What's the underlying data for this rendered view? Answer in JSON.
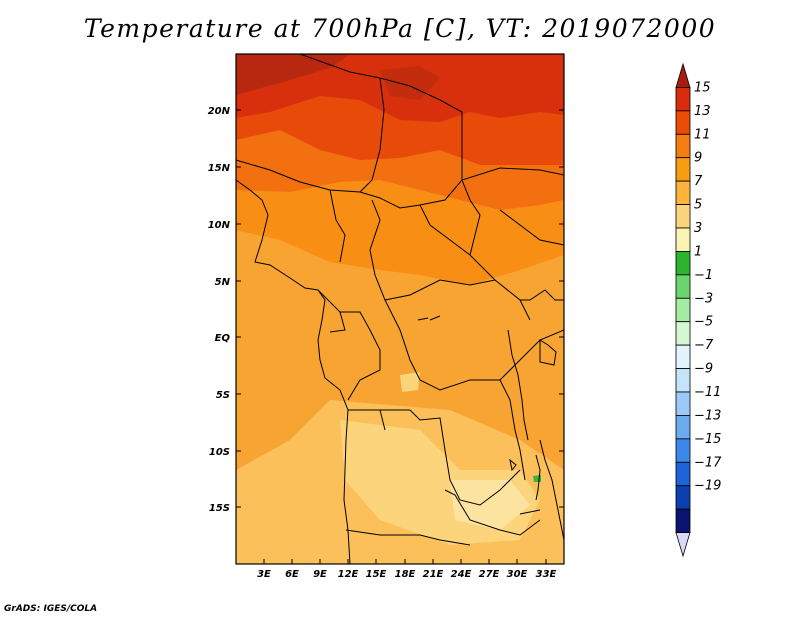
{
  "title": "Temperature at 700hPa [C], VT: 2019072000",
  "credit": "GrADS: IGES/COLA",
  "map": {
    "lat_labels": [
      "20N",
      "15N",
      "10N",
      "5N",
      "EQ",
      "5S",
      "10S",
      "15S"
    ],
    "lon_labels": [
      "3E",
      "6E",
      "9E",
      "12E",
      "15E",
      "18E",
      "21E",
      "24E",
      "27E",
      "30E",
      "33E"
    ]
  },
  "colorbar": {
    "labels": [
      "15",
      "13",
      "11",
      "9",
      "7",
      "5",
      "3",
      "1",
      "−1",
      "−3",
      "−5",
      "−7",
      "−9",
      "−11",
      "−13",
      "−15",
      "−17",
      "−19"
    ],
    "colors": [
      "#a81c0c",
      "#d82c0c",
      "#ec4c08",
      "#f47c10",
      "#f89c14",
      "#fcb43c",
      "#fcd47c",
      "#fcf4b4",
      "#2cb42c",
      "#6cd46c",
      "#a4eca4",
      "#d4f8d4",
      "#e4f4fc",
      "#c4e4fc",
      "#9ccaf8",
      "#6caaf0",
      "#3c88e8",
      "#1c64d8",
      "#0c40b0",
      "#081470",
      "#d8d8f8"
    ]
  }
}
